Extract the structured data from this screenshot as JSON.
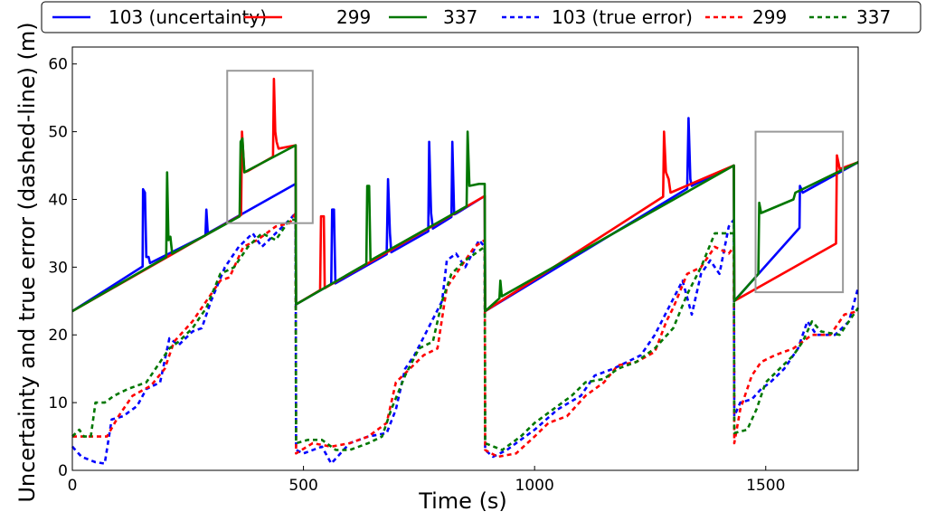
{
  "chart_data": {
    "type": "line",
    "title": "",
    "xlabel": "Time (s)",
    "ylabel": "Uncertainty and true error (dashed-line) (m)",
    "xlim": [
      0,
      1700
    ],
    "ylim": [
      0,
      62.5
    ],
    "xticks": [
      0,
      500,
      1000,
      1500
    ],
    "yticks": [
      0,
      10,
      20,
      30,
      40,
      50,
      60
    ],
    "xtick_labels": [
      "0",
      "500",
      "1000",
      "1500"
    ],
    "ytick_labels": [
      "0",
      "10",
      "20",
      "30",
      "40",
      "50",
      "60"
    ],
    "grid": false,
    "legend_placement": "top, outside, single row",
    "series": [
      {
        "name": "103 (uncertainty)",
        "color": "#0000ff",
        "style": "solid",
        "points": [
          [
            0,
            23.5
          ],
          [
            152,
            30.1
          ],
          [
            153,
            41.5
          ],
          [
            157,
            41
          ],
          [
            160,
            31.5
          ],
          [
            165,
            31.5
          ],
          [
            168,
            30.6
          ],
          [
            288,
            34.7
          ],
          [
            290,
            38.5
          ],
          [
            293,
            35
          ],
          [
            483,
            42.3
          ],
          [
            484,
            24.5
          ],
          [
            560,
            27.5
          ],
          [
            562,
            38.5
          ],
          [
            566,
            38.5
          ],
          [
            569,
            27.6
          ],
          [
            680,
            31.9
          ],
          [
            683,
            43
          ],
          [
            687,
            35
          ],
          [
            690,
            32.2
          ],
          [
            770,
            35.3
          ],
          [
            772,
            48.5
          ],
          [
            776,
            38
          ],
          [
            780,
            35.7
          ],
          [
            820,
            37.4
          ],
          [
            822,
            48.5
          ],
          [
            826,
            37.8
          ],
          [
            830,
            37.9
          ],
          [
            892,
            40.5
          ],
          [
            893,
            23.5
          ],
          [
            1330,
            41.6
          ],
          [
            1333,
            52
          ],
          [
            1337,
            43
          ],
          [
            1340,
            42
          ],
          [
            1431,
            45
          ],
          [
            1432,
            25
          ],
          [
            1573,
            35.8
          ],
          [
            1574,
            42
          ],
          [
            1580,
            41
          ],
          [
            1700,
            45.5
          ]
        ]
      },
      {
        "name": "299",
        "color": "#ff0000",
        "style": "solid",
        "points": [
          [
            0,
            23.5
          ],
          [
            365,
            37.7
          ],
          [
            367,
            50
          ],
          [
            372,
            44
          ],
          [
            380,
            44.2
          ],
          [
            434,
            46.3
          ],
          [
            436,
            57.8
          ],
          [
            439,
            50
          ],
          [
            442,
            48.5
          ],
          [
            446,
            47.5
          ],
          [
            483,
            48
          ],
          [
            484,
            24.5
          ],
          [
            536,
            26.6
          ],
          [
            538,
            37.5
          ],
          [
            544,
            37.5
          ],
          [
            546,
            26.9
          ],
          [
            892,
            40.5
          ],
          [
            893,
            23.5
          ],
          [
            1278,
            40.4
          ],
          [
            1280,
            50
          ],
          [
            1284,
            44
          ],
          [
            1290,
            43
          ],
          [
            1294,
            41
          ],
          [
            1431,
            45
          ],
          [
            1432,
            25
          ],
          [
            1652,
            33.5
          ],
          [
            1654,
            46.5
          ],
          [
            1660,
            44.5
          ],
          [
            1700,
            45.5
          ]
        ]
      },
      {
        "name": "337",
        "color": "#007700",
        "style": "solid",
        "points": [
          [
            0,
            23.5
          ],
          [
            203,
            31.5
          ],
          [
            205,
            44
          ],
          [
            208,
            34
          ],
          [
            212,
            34.5
          ],
          [
            216,
            32
          ],
          [
            362,
            37.5
          ],
          [
            364,
            48.5
          ],
          [
            368,
            49
          ],
          [
            372,
            44
          ],
          [
            483,
            48
          ],
          [
            484,
            24.5
          ],
          [
            636,
            30.5
          ],
          [
            638,
            42
          ],
          [
            642,
            42
          ],
          [
            645,
            31
          ],
          [
            853,
            39
          ],
          [
            855,
            50
          ],
          [
            859,
            42
          ],
          [
            880,
            42.3
          ],
          [
            892,
            42.3
          ],
          [
            893,
            23.5
          ],
          [
            924,
            25.4
          ],
          [
            926,
            28
          ],
          [
            929,
            25.7
          ],
          [
            1431,
            45
          ],
          [
            1432,
            25
          ],
          [
            1484,
            29
          ],
          [
            1486,
            39.5
          ],
          [
            1490,
            38
          ],
          [
            1560,
            40
          ],
          [
            1564,
            41
          ],
          [
            1700,
            45.5
          ]
        ]
      },
      {
        "name": "103 (true error)",
        "color": "#0000ff",
        "style": "dashed",
        "points": [
          [
            0,
            3.5
          ],
          [
            20,
            2
          ],
          [
            50,
            1.2
          ],
          [
            70,
            1
          ],
          [
            85,
            7.5
          ],
          [
            110,
            8
          ],
          [
            140,
            9.5
          ],
          [
            160,
            12
          ],
          [
            190,
            13
          ],
          [
            210,
            19.5
          ],
          [
            230,
            18.5
          ],
          [
            260,
            20.5
          ],
          [
            280,
            21
          ],
          [
            300,
            25
          ],
          [
            330,
            30
          ],
          [
            360,
            33
          ],
          [
            390,
            35
          ],
          [
            410,
            33
          ],
          [
            440,
            35
          ],
          [
            470,
            37
          ],
          [
            483,
            38
          ],
          [
            484,
            3
          ],
          [
            500,
            2.5
          ],
          [
            540,
            3.5
          ],
          [
            560,
            1
          ],
          [
            600,
            4
          ],
          [
            640,
            5
          ],
          [
            680,
            5.5
          ],
          [
            700,
            9
          ],
          [
            720,
            15
          ],
          [
            740,
            17
          ],
          [
            770,
            21
          ],
          [
            800,
            25
          ],
          [
            810,
            31
          ],
          [
            830,
            32
          ],
          [
            850,
            30
          ],
          [
            880,
            34
          ],
          [
            892,
            33
          ],
          [
            893,
            3
          ],
          [
            910,
            2
          ],
          [
            940,
            3
          ],
          [
            960,
            4
          ],
          [
            1000,
            6
          ],
          [
            1050,
            9
          ],
          [
            1100,
            11
          ],
          [
            1130,
            14
          ],
          [
            1170,
            15
          ],
          [
            1200,
            16
          ],
          [
            1230,
            17
          ],
          [
            1260,
            20
          ],
          [
            1290,
            24
          ],
          [
            1320,
            28
          ],
          [
            1340,
            23
          ],
          [
            1360,
            29
          ],
          [
            1380,
            31
          ],
          [
            1400,
            29
          ],
          [
            1420,
            36
          ],
          [
            1431,
            37
          ],
          [
            1432,
            8
          ],
          [
            1445,
            10
          ],
          [
            1470,
            10.5
          ],
          [
            1490,
            12
          ],
          [
            1510,
            13
          ],
          [
            1540,
            15
          ],
          [
            1570,
            18
          ],
          [
            1590,
            22
          ],
          [
            1610,
            20
          ],
          [
            1650,
            20
          ],
          [
            1680,
            22
          ],
          [
            1700,
            27
          ]
        ]
      },
      {
        "name": "299",
        "color": "#ff0000",
        "style": "dashed",
        "points": [
          [
            0,
            5
          ],
          [
            50,
            5
          ],
          [
            75,
            5
          ],
          [
            100,
            8
          ],
          [
            130,
            11
          ],
          [
            170,
            12.5
          ],
          [
            200,
            15
          ],
          [
            220,
            19
          ],
          [
            260,
            22
          ],
          [
            290,
            25
          ],
          [
            320,
            28
          ],
          [
            340,
            28.5
          ],
          [
            370,
            33
          ],
          [
            400,
            34
          ],
          [
            440,
            36
          ],
          [
            470,
            36.5
          ],
          [
            483,
            38
          ],
          [
            484,
            2.5
          ],
          [
            520,
            4
          ],
          [
            560,
            3.5
          ],
          [
            600,
            4
          ],
          [
            640,
            5
          ],
          [
            680,
            7
          ],
          [
            700,
            13
          ],
          [
            730,
            15
          ],
          [
            760,
            17
          ],
          [
            790,
            18
          ],
          [
            810,
            27
          ],
          [
            840,
            30
          ],
          [
            870,
            33
          ],
          [
            892,
            34
          ],
          [
            893,
            3
          ],
          [
            920,
            2
          ],
          [
            960,
            2.5
          ],
          [
            1000,
            5
          ],
          [
            1030,
            7
          ],
          [
            1070,
            8
          ],
          [
            1110,
            11
          ],
          [
            1150,
            13
          ],
          [
            1180,
            15.5
          ],
          [
            1220,
            16
          ],
          [
            1260,
            17.5
          ],
          [
            1285,
            22
          ],
          [
            1300,
            24
          ],
          [
            1330,
            29
          ],
          [
            1360,
            30
          ],
          [
            1390,
            33
          ],
          [
            1420,
            32
          ],
          [
            1431,
            33
          ],
          [
            1432,
            4
          ],
          [
            1445,
            9
          ],
          [
            1470,
            14
          ],
          [
            1490,
            16
          ],
          [
            1520,
            17
          ],
          [
            1560,
            18
          ],
          [
            1600,
            20
          ],
          [
            1640,
            20
          ],
          [
            1670,
            23
          ],
          [
            1700,
            23.5
          ]
        ]
      },
      {
        "name": "337",
        "color": "#007700",
        "style": "dashed",
        "points": [
          [
            0,
            5
          ],
          [
            15,
            6
          ],
          [
            25,
            5
          ],
          [
            40,
            5
          ],
          [
            50,
            10
          ],
          [
            70,
            10
          ],
          [
            90,
            11
          ],
          [
            120,
            12
          ],
          [
            160,
            13
          ],
          [
            180,
            15
          ],
          [
            210,
            18
          ],
          [
            230,
            19
          ],
          [
            260,
            21
          ],
          [
            290,
            24
          ],
          [
            320,
            29
          ],
          [
            350,
            30
          ],
          [
            380,
            33
          ],
          [
            410,
            35
          ],
          [
            440,
            34
          ],
          [
            470,
            37
          ],
          [
            483,
            37
          ],
          [
            484,
            4
          ],
          [
            510,
            4.5
          ],
          [
            540,
            4.5
          ],
          [
            570,
            3
          ],
          [
            600,
            3
          ],
          [
            640,
            4
          ],
          [
            670,
            5
          ],
          [
            690,
            9
          ],
          [
            720,
            14
          ],
          [
            750,
            18
          ],
          [
            780,
            19
          ],
          [
            800,
            25
          ],
          [
            820,
            29
          ],
          [
            850,
            31
          ],
          [
            892,
            33
          ],
          [
            893,
            4
          ],
          [
            930,
            3
          ],
          [
            970,
            5
          ],
          [
            1000,
            7
          ],
          [
            1040,
            9
          ],
          [
            1080,
            11
          ],
          [
            1110,
            13
          ],
          [
            1150,
            13.5
          ],
          [
            1180,
            15
          ],
          [
            1220,
            16
          ],
          [
            1260,
            18
          ],
          [
            1300,
            21
          ],
          [
            1330,
            26
          ],
          [
            1360,
            30
          ],
          [
            1390,
            35
          ],
          [
            1420,
            35
          ],
          [
            1431,
            35
          ],
          [
            1432,
            5.5
          ],
          [
            1460,
            6
          ],
          [
            1480,
            9
          ],
          [
            1500,
            13
          ],
          [
            1530,
            15
          ],
          [
            1560,
            17
          ],
          [
            1580,
            19
          ],
          [
            1600,
            22
          ],
          [
            1620,
            20.5
          ],
          [
            1660,
            20
          ],
          [
            1690,
            23
          ],
          [
            1700,
            24
          ]
        ]
      }
    ],
    "annotations": [
      {
        "type": "rectangle",
        "color": "#999999",
        "x_range": [
          335,
          520
        ],
        "y_range": [
          36.5,
          59
        ]
      },
      {
        "type": "rectangle",
        "color": "#999999",
        "x_range": [
          1478,
          1667
        ],
        "y_range": [
          26.3,
          50
        ]
      }
    ]
  }
}
